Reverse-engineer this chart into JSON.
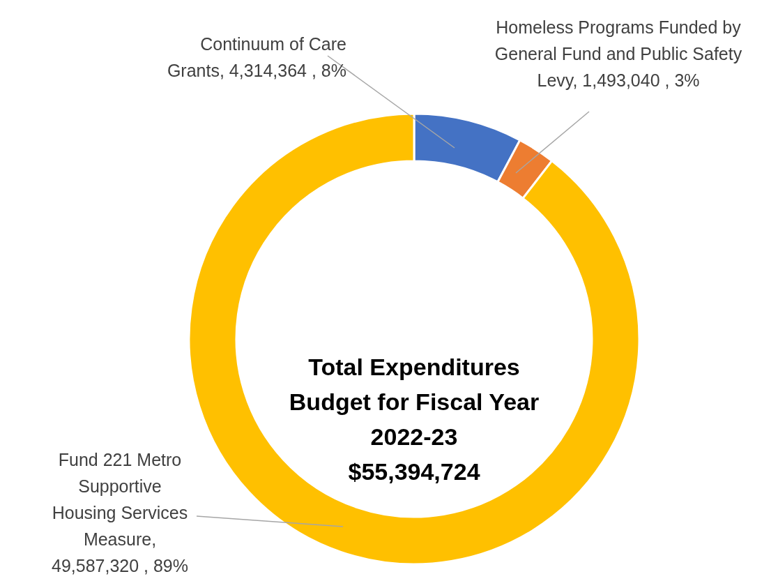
{
  "chart_data": {
    "type": "donut",
    "title": "Total Expenditures Budget for Fiscal Year 2022-23",
    "subtitle": "$55,394,724",
    "categories": [
      "Continuum of Care Grants",
      "Homeless Programs Funded by General Fund and Public Safety Levy",
      "Fund 221 Metro Supportive Housing Services Measure"
    ],
    "values": [
      4314364,
      1493040,
      49587320
    ],
    "colors": [
      "#4472c4",
      "#ed7d31",
      "#ffc000"
    ],
    "value_labels": [
      ",  4,314,364 , 8%",
      ",  1,493,040 , 3%",
      ", 49,587,320 , 89%"
    ]
  }
}
